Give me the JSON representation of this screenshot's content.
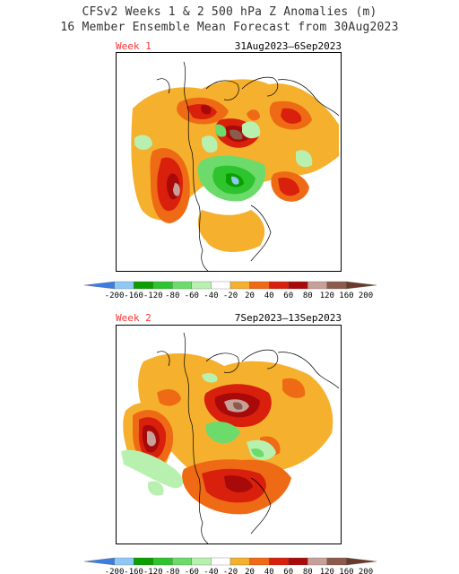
{
  "header": {
    "title_line1": "CFSv2 Weeks 1 & 2 500 hPa Z Anomalies (m)",
    "title_line2": "16 Member Ensemble Mean Forecast from 30Aug2023"
  },
  "panels": [
    {
      "week_label": "Week 1",
      "date_range": "31Aug2023–6Sep2023"
    },
    {
      "week_label": "Week 2",
      "date_range": "7Sep2023–13Sep2023"
    }
  ],
  "colorbar": {
    "ticks": [
      "-200",
      "-160",
      "-120",
      "-80",
      "-60",
      "-40",
      "-20",
      "20",
      "40",
      "60",
      "80",
      "120",
      "160",
      "200"
    ],
    "colors": [
      "#3b7de0",
      "#8fc8f5",
      "#0aa000",
      "#2ec42e",
      "#6cdb6c",
      "#b8f0b0",
      "#ffffff",
      "#f5b02e",
      "#ee6a14",
      "#d8200c",
      "#a80a0a",
      "#c8a09a",
      "#8c5b4c",
      "#6b3a2a"
    ]
  }
}
